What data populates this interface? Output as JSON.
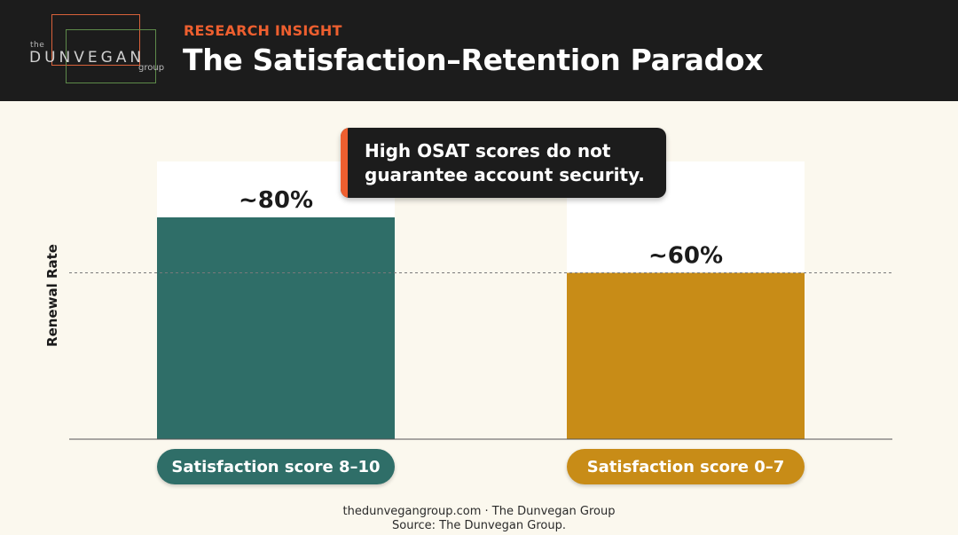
{
  "header": {
    "kicker": "RESEARCH INSIGHT",
    "title": "The Satisfaction–Retention Paradox",
    "logo": {
      "the": "the",
      "word": "DUNVEGAN",
      "group": "group"
    }
  },
  "callout": {
    "text": "High OSAT scores do not guarantee account security."
  },
  "footer": {
    "line1": "thedunvegangroup.com · The Dunvegan Group",
    "line2": "Source: The Dunvegan Group."
  },
  "colors": {
    "header_bg": "#1c1c1c",
    "accent": "#ee5f2f",
    "bar_high": "#2f6e68",
    "bar_low": "#c88c17",
    "background": "#fbf8ee"
  },
  "chart_data": {
    "type": "bar",
    "title": "",
    "ylabel": "Renewal Rate",
    "xlabel": "",
    "ylim": [
      0,
      100
    ],
    "grid": false,
    "reference_line": 60,
    "categories": [
      "Satisfaction score 8–10",
      "Satisfaction score 0–7"
    ],
    "values": [
      80,
      60
    ],
    "value_labels": [
      "~80%",
      "~60%"
    ],
    "colors": [
      "#2f6e68",
      "#c88c17"
    ]
  }
}
